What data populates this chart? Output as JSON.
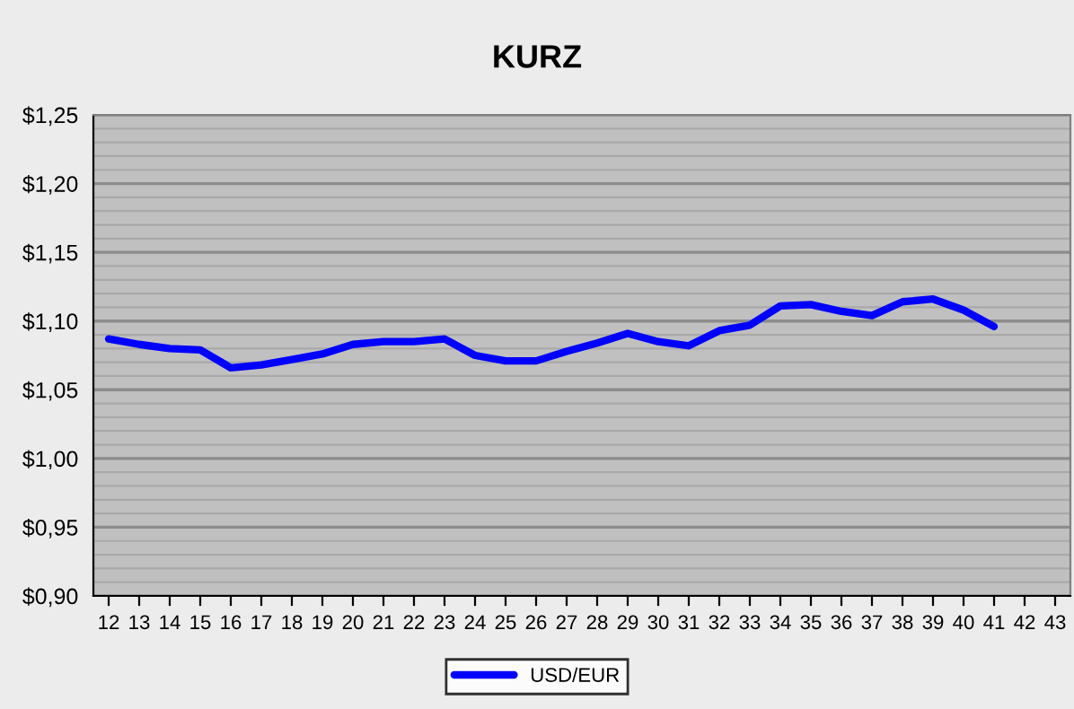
{
  "chart_data": {
    "type": "line",
    "title": "KURZ",
    "categories": [
      "12",
      "13",
      "14",
      "15",
      "16",
      "17",
      "18",
      "19",
      "20",
      "21",
      "22",
      "23",
      "24",
      "25",
      "26",
      "27",
      "28",
      "29",
      "30",
      "31",
      "32",
      "33",
      "34",
      "35",
      "36",
      "37",
      "38",
      "39",
      "40",
      "41",
      "42",
      "43"
    ],
    "series": [
      {
        "name": "USD/EUR",
        "color": "#0000ff",
        "values": [
          1.087,
          1.083,
          1.08,
          1.079,
          1.066,
          1.068,
          1.072,
          1.076,
          1.083,
          1.085,
          1.085,
          1.087,
          1.075,
          1.071,
          1.071,
          1.078,
          1.084,
          1.091,
          1.085,
          1.082,
          1.093,
          1.097,
          1.111,
          1.112,
          1.107,
          1.104,
          1.114,
          1.116,
          1.108,
          1.096,
          null,
          null
        ]
      }
    ],
    "ylim": [
      0.9,
      1.25
    ],
    "yticks": [
      {
        "value": 0.9,
        "label": "$0,90"
      },
      {
        "value": 0.91,
        "label": null
      },
      {
        "value": 0.92,
        "label": null
      },
      {
        "value": 0.93,
        "label": null
      },
      {
        "value": 0.94,
        "label": null
      },
      {
        "value": 0.95,
        "label": "$0,95"
      },
      {
        "value": 0.96,
        "label": null
      },
      {
        "value": 0.97,
        "label": null
      },
      {
        "value": 0.98,
        "label": null
      },
      {
        "value": 0.99,
        "label": null
      },
      {
        "value": 1.0,
        "label": "$1,00"
      },
      {
        "value": 1.01,
        "label": null
      },
      {
        "value": 1.02,
        "label": null
      },
      {
        "value": 1.03,
        "label": null
      },
      {
        "value": 1.04,
        "label": null
      },
      {
        "value": 1.05,
        "label": "$1,05"
      },
      {
        "value": 1.06,
        "label": null
      },
      {
        "value": 1.07,
        "label": null
      },
      {
        "value": 1.08,
        "label": null
      },
      {
        "value": 1.09,
        "label": null
      },
      {
        "value": 1.1,
        "label": "$1,10"
      },
      {
        "value": 1.11,
        "label": null
      },
      {
        "value": 1.12,
        "label": null
      },
      {
        "value": 1.13,
        "label": null
      },
      {
        "value": 1.14,
        "label": null
      },
      {
        "value": 1.15,
        "label": "$1,15"
      },
      {
        "value": 1.16,
        "label": null
      },
      {
        "value": 1.17,
        "label": null
      },
      {
        "value": 1.18,
        "label": null
      },
      {
        "value": 1.19,
        "label": null
      },
      {
        "value": 1.2,
        "label": "$1,20"
      },
      {
        "value": 1.21,
        "label": null
      },
      {
        "value": 1.22,
        "label": null
      },
      {
        "value": 1.23,
        "label": null
      },
      {
        "value": 1.24,
        "label": null
      },
      {
        "value": 1.25,
        "label": "$1,25"
      }
    ],
    "grid": "y",
    "legend": "bottom",
    "marker": "none",
    "line_style": "solid"
  }
}
